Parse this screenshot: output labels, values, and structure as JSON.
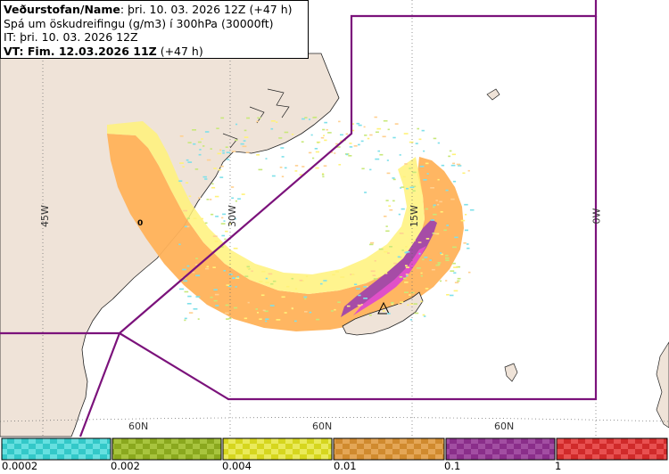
{
  "header": {
    "line1_bold": "Veðurstofan/Name",
    "line1_rest": ": þri. 10. 03. 2026 12Z (+47 h)",
    "line2": "Spá um öskudreifingu (g/m3) í 300hPa (30000ft)",
    "line3": "IT: þri. 10. 03. 2026 12Z",
    "line4_bold": "VT: Fim. 12.03.2026 11Z",
    "line4_rest": " (+47 h)"
  },
  "map": {
    "grid_labels": {
      "lon_45w": "45W",
      "lon_30w": "30W",
      "lon_15w": "15W",
      "lon_0w": "0W",
      "lat_60n_a": "60N",
      "lat_60n_b": "60N",
      "lat_60n_c": "60N",
      "contour_label": "0"
    },
    "colors": {
      "land": "#efe3d8",
      "sea": "#ffffff",
      "fir_boundary": "#7b127b",
      "conc_yellow": "#fff27a",
      "conc_orange": "#ffb25a",
      "conc_purple": "#a64ca6",
      "conc_pink": "#e050c8",
      "speckle_cyan": "#7ee0ea"
    }
  },
  "legend": {
    "bins": [
      {
        "color": "#33c8c8"
      },
      {
        "color": "#8aa81e"
      },
      {
        "color": "#d6d61e"
      },
      {
        "color": "#d08a2e"
      },
      {
        "color": "#8a2e8a"
      },
      {
        "color": "#d02a2a"
      }
    ],
    "tick_labels": [
      "0.0002",
      "0.002",
      "0.004",
      "0.01",
      "0.1",
      "1"
    ]
  }
}
